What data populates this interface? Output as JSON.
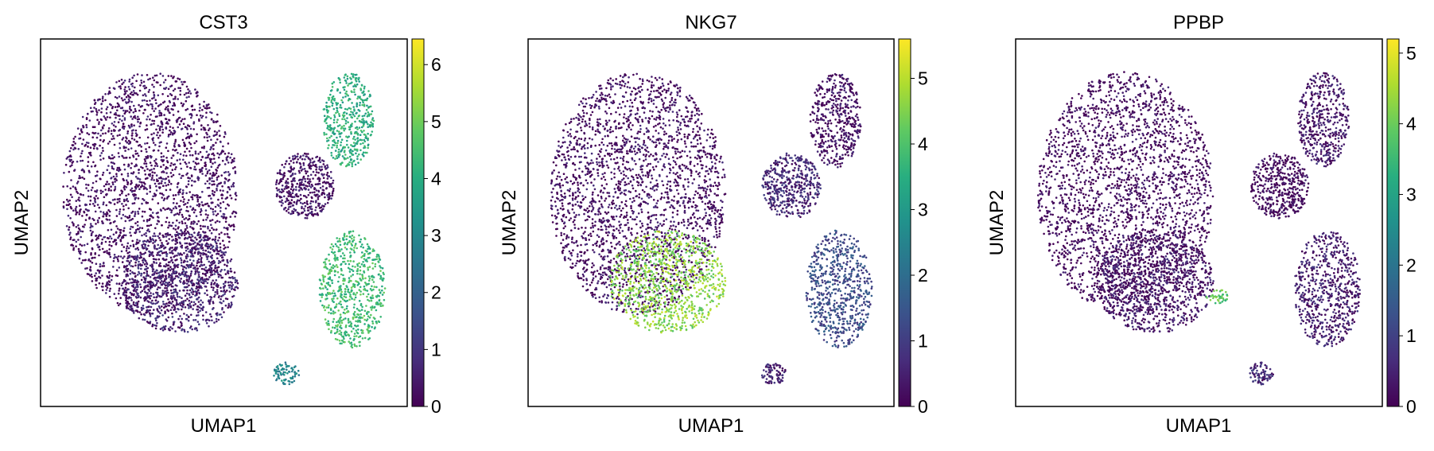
{
  "chart_data": [
    {
      "type": "scatter",
      "title": "CST3",
      "xlabel": "UMAP1",
      "ylabel": "UMAP2",
      "colormap": "viridis",
      "colorbar": {
        "ticks": [
          "0",
          "1",
          "2",
          "3",
          "4",
          "5",
          "6"
        ],
        "min": 0,
        "max": 6.45
      },
      "grid": false,
      "clusters": [
        {
          "name": "upper-left-cloud",
          "level": 0.2
        },
        {
          "name": "right-middle-cluster",
          "level": 0.3
        },
        {
          "name": "top-right-cluster",
          "level": 4.0
        },
        {
          "name": "lower-right-cluster",
          "level": 4.4
        },
        {
          "name": "bottom-small-cluster",
          "level": 3.0
        },
        {
          "name": "lower-middle-cloud",
          "level": 0.6
        }
      ]
    },
    {
      "type": "scatter",
      "title": "NKG7",
      "xlabel": "UMAP1",
      "ylabel": "UMAP2",
      "colormap": "viridis",
      "colorbar": {
        "ticks": [
          "0",
          "1",
          "2",
          "3",
          "4",
          "5"
        ],
        "min": 0,
        "max": 5.6
      },
      "grid": false,
      "clusters": [
        {
          "name": "upper-left-cloud",
          "level": 0.2
        },
        {
          "name": "right-middle-cluster",
          "level": 0.6
        },
        {
          "name": "top-right-cluster",
          "level": 0.2
        },
        {
          "name": "lower-right-cluster",
          "level": 1.3
        },
        {
          "name": "bottom-small-cluster",
          "level": 0.5
        },
        {
          "name": "lower-middle-cloud",
          "level": 4.6
        }
      ]
    },
    {
      "type": "scatter",
      "title": "PPBP",
      "xlabel": "UMAP1",
      "ylabel": "UMAP2",
      "colormap": "viridis",
      "colorbar": {
        "ticks": [
          "0",
          "1",
          "2",
          "3",
          "4",
          "5"
        ],
        "min": 0,
        "max": 5.2
      },
      "grid": false,
      "clusters": [
        {
          "name": "upper-left-cloud",
          "level": 0.1
        },
        {
          "name": "right-middle-cluster",
          "level": 0.1
        },
        {
          "name": "top-right-cluster",
          "level": 0.3
        },
        {
          "name": "lower-right-cluster",
          "level": 0.4
        },
        {
          "name": "bottom-small-cluster",
          "level": 0.6
        },
        {
          "name": "lower-middle-cloud",
          "level": 0.3
        },
        {
          "name": "platelet-spot",
          "level": 3.8
        }
      ]
    }
  ]
}
